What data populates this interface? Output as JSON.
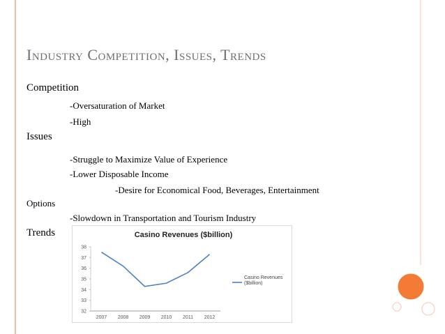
{
  "slide": {
    "title": "Industry Competition, Issues, Trends",
    "body": [
      "Competition",
      "-Oversaturation of Market",
      "-High",
      "Issues",
      "-Struggle to Maximize Value of Experience",
      "-Lower Disposable Income",
      "-Desire for Economical Food, Beverages, Entertainment",
      "Options",
      "-Slowdown in Transportation and Tourism Industry",
      "Trends"
    ]
  },
  "chart": {
    "type": "line",
    "title": "Casino Revenues ($billion)",
    "categories": [
      "2007",
      "2008",
      "2009",
      "2010",
      "2011",
      "2012"
    ],
    "series": [
      {
        "name": "Casino Revenues ($billion)",
        "color": "#4f81bd",
        "values": [
          37.5,
          36.2,
          34.3,
          34.6,
          35.6,
          37.3
        ]
      }
    ],
    "ylim": [
      32,
      38
    ],
    "yticks": [
      32,
      33,
      34,
      35,
      36,
      37,
      38
    ],
    "grid": false,
    "legend": "right"
  }
}
